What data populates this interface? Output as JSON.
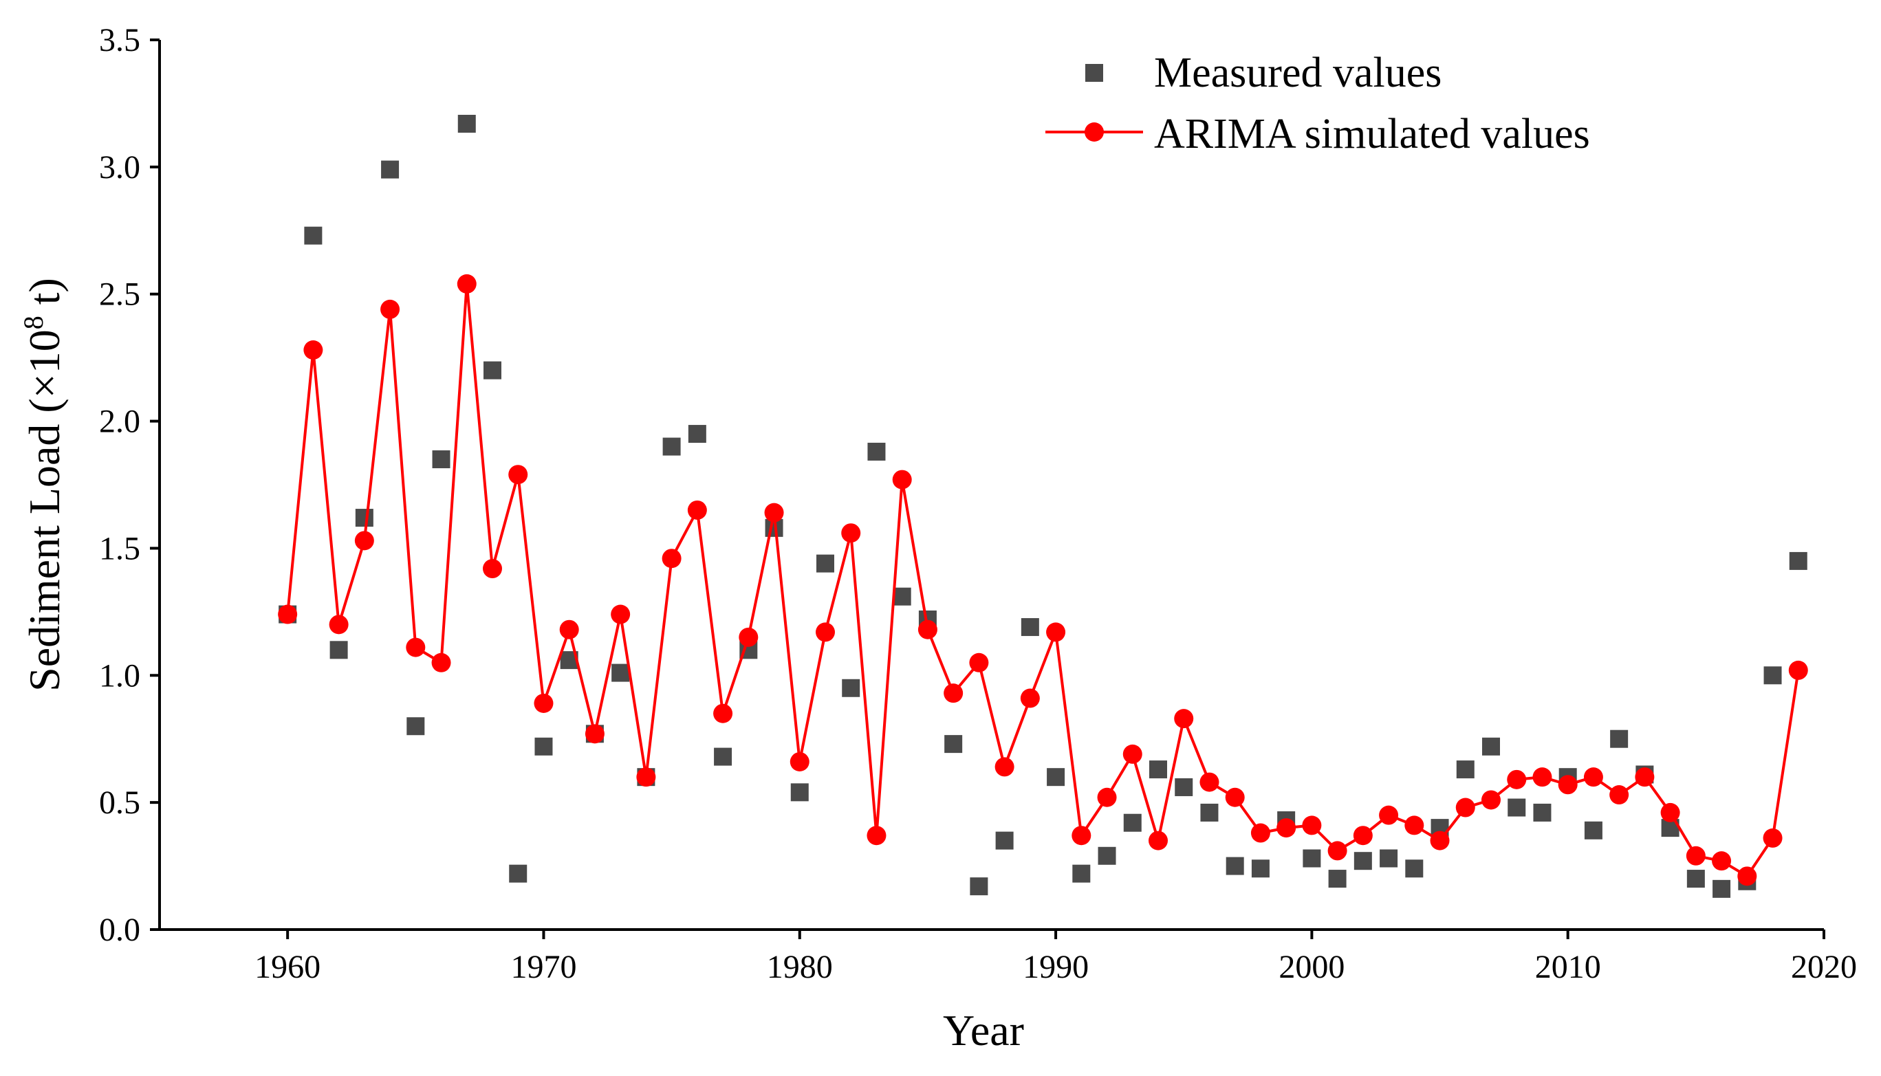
{
  "chart_data": {
    "type": "scatter+line",
    "title": "",
    "xlabel": "Year",
    "ylabel": "Sediment Load (×10^8 t)",
    "ylabel_parts": {
      "pre": "Sediment Load (×10",
      "sup": "8",
      "post": " t)"
    },
    "xlim": [
      1955,
      2020
    ],
    "ylim": [
      0,
      3.5
    ],
    "xticks": [
      1960,
      1970,
      1980,
      1990,
      2000,
      2010,
      2020
    ],
    "yticks": [
      "0.0",
      "0.5",
      "1.0",
      "1.5",
      "2.0",
      "2.5",
      "3.0",
      "3.5"
    ],
    "legend_position": "top-right",
    "series": [
      {
        "name": "Measured values",
        "kind": "scatter",
        "marker": "square",
        "color": "#4a4a4a",
        "x": [
          1960,
          1961,
          1962,
          1963,
          1964,
          1965,
          1966,
          1967,
          1968,
          1969,
          1970,
          1971,
          1972,
          1973,
          1974,
          1975,
          1976,
          1977,
          1978,
          1979,
          1980,
          1981,
          1982,
          1983,
          1984,
          1985,
          1986,
          1987,
          1988,
          1989,
          1990,
          1991,
          1992,
          1993,
          1994,
          1995,
          1996,
          1997,
          1998,
          1999,
          2000,
          2001,
          2002,
          2003,
          2004,
          2005,
          2006,
          2007,
          2008,
          2009,
          2010,
          2011,
          2012,
          2013,
          2014,
          2015,
          2016,
          2017,
          2018,
          2019
        ],
        "values": [
          1.24,
          2.73,
          1.1,
          1.62,
          2.99,
          0.8,
          1.85,
          3.17,
          2.2,
          0.22,
          0.72,
          1.06,
          0.77,
          1.01,
          0.6,
          1.9,
          1.95,
          0.68,
          1.1,
          1.58,
          0.54,
          1.44,
          0.95,
          1.88,
          1.31,
          1.22,
          0.73,
          0.17,
          0.35,
          1.19,
          0.6,
          0.22,
          0.29,
          0.42,
          0.63,
          0.56,
          0.46,
          0.25,
          0.24,
          0.43,
          0.28,
          0.2,
          0.27,
          0.28,
          0.24,
          0.4,
          0.63,
          0.72,
          0.48,
          0.46,
          0.6,
          0.39,
          0.75,
          0.61,
          0.4,
          0.2,
          0.16,
          0.19,
          1.0,
          1.45
        ]
      },
      {
        "name": "ARIMA simulated values",
        "kind": "line",
        "marker": "circle",
        "color": "#ff0000",
        "x": [
          1960,
          1961,
          1962,
          1963,
          1964,
          1965,
          1966,
          1967,
          1968,
          1969,
          1970,
          1971,
          1972,
          1973,
          1974,
          1975,
          1976,
          1977,
          1978,
          1979,
          1980,
          1981,
          1982,
          1983,
          1984,
          1985,
          1986,
          1987,
          1988,
          1989,
          1990,
          1991,
          1992,
          1993,
          1994,
          1995,
          1996,
          1997,
          1998,
          1999,
          2000,
          2001,
          2002,
          2003,
          2004,
          2005,
          2006,
          2007,
          2008,
          2009,
          2010,
          2011,
          2012,
          2013,
          2014,
          2015,
          2016,
          2017,
          2018,
          2019
        ],
        "values": [
          1.24,
          2.28,
          1.2,
          1.53,
          2.44,
          1.11,
          1.05,
          2.54,
          1.42,
          1.79,
          0.89,
          1.18,
          0.77,
          1.24,
          0.6,
          1.46,
          1.65,
          0.85,
          1.15,
          1.64,
          0.66,
          1.17,
          1.56,
          0.37,
          1.77,
          1.18,
          0.93,
          1.05,
          0.64,
          0.91,
          1.17,
          0.37,
          0.52,
          0.69,
          0.35,
          0.83,
          0.58,
          0.52,
          0.38,
          0.4,
          0.41,
          0.31,
          0.37,
          0.45,
          0.41,
          0.35,
          0.48,
          0.51,
          0.59,
          0.6,
          0.57,
          0.6,
          0.53,
          0.6,
          0.46,
          0.29,
          0.27,
          0.21,
          0.36,
          1.02
        ]
      }
    ]
  }
}
